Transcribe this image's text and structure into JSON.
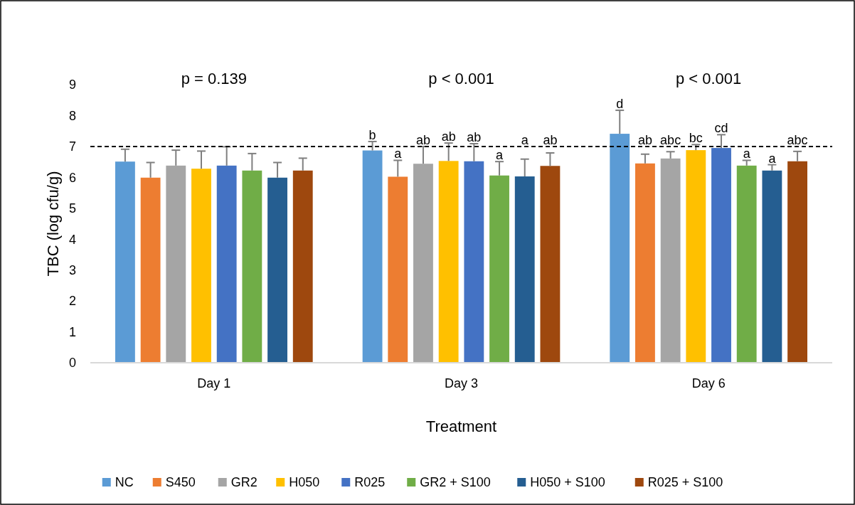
{
  "chart_data": {
    "type": "bar",
    "xlabel": "Treatment",
    "ylabel": "TBC (log cfu/g)",
    "categories": [
      "Day 1",
      "Day 3",
      "Day 6"
    ],
    "ylim": [
      0,
      9
    ],
    "yticks": [
      0,
      1,
      2,
      3,
      4,
      5,
      6,
      7,
      8,
      9
    ],
    "grid": false,
    "legend": "bottom",
    "series": [
      {
        "name": "NC",
        "color": "#5b9bd5",
        "values": [
          6.51,
          6.87,
          7.41
        ],
        "errors": [
          [
            6.51,
            6.91
          ],
          [
            6.87,
            7.16
          ],
          [
            7.41,
            8.17
          ]
        ],
        "value_labels": [
          null,
          "b",
          "d"
        ]
      },
      {
        "name": "S450",
        "color": "#ed7d31",
        "values": [
          5.99,
          6.02,
          6.45
        ],
        "errors": [
          [
            5.99,
            6.48
          ],
          [
            6.02,
            6.55
          ],
          [
            6.45,
            6.75
          ]
        ],
        "value_labels": [
          null,
          "a",
          "ab"
        ]
      },
      {
        "name": "GR2",
        "color": "#a5a5a5",
        "values": [
          6.38,
          6.44,
          6.61
        ],
        "errors": [
          [
            6.38,
            6.88
          ],
          [
            6.44,
            7.0
          ],
          [
            6.61,
            6.83
          ]
        ],
        "value_labels": [
          null,
          "ab",
          "abc"
        ]
      },
      {
        "name": "H050",
        "color": "#ffc000",
        "values": [
          6.28,
          6.53,
          6.88
        ],
        "errors": [
          [
            6.28,
            6.85
          ],
          [
            6.53,
            7.11
          ],
          [
            6.88,
            7.06
          ]
        ],
        "value_labels": [
          null,
          "ab",
          "bc"
        ]
      },
      {
        "name": "R025",
        "color": "#4472c4",
        "values": [
          6.38,
          6.52,
          6.95
        ],
        "errors": [
          [
            6.38,
            6.99
          ],
          [
            6.52,
            7.09
          ],
          [
            6.95,
            7.38
          ]
        ],
        "value_labels": [
          null,
          "ab",
          "cd"
        ]
      },
      {
        "name": "GR2 + S100",
        "color": "#70ad47",
        "values": [
          6.22,
          6.06,
          6.38
        ],
        "errors": [
          [
            6.22,
            6.77
          ],
          [
            6.06,
            6.51
          ],
          [
            6.38,
            6.55
          ]
        ],
        "value_labels": [
          null,
          "a",
          "a"
        ]
      },
      {
        "name": "H050 + S100",
        "color": "#255e91",
        "values": [
          5.99,
          6.03,
          6.22
        ],
        "errors": [
          [
            5.99,
            6.48
          ],
          [
            6.03,
            6.59
          ],
          [
            6.22,
            6.41
          ]
        ],
        "value_labels": [
          null,
          "a",
          "a"
        ]
      },
      {
        "name": "R025 + S100",
        "color": "#9e480e",
        "values": [
          6.22,
          6.37,
          6.52
        ],
        "errors": [
          [
            6.22,
            6.62
          ],
          [
            6.37,
            6.79
          ],
          [
            6.52,
            6.84
          ]
        ],
        "value_labels": [
          null,
          "ab",
          "abc"
        ]
      }
    ],
    "ref_lines": [
      {
        "axis": "y",
        "value": 7,
        "color": "#000000",
        "line_style": "dashed"
      }
    ],
    "annotations": [
      "p = 0.139",
      "p < 0.001",
      "p < 0.001"
    ]
  }
}
